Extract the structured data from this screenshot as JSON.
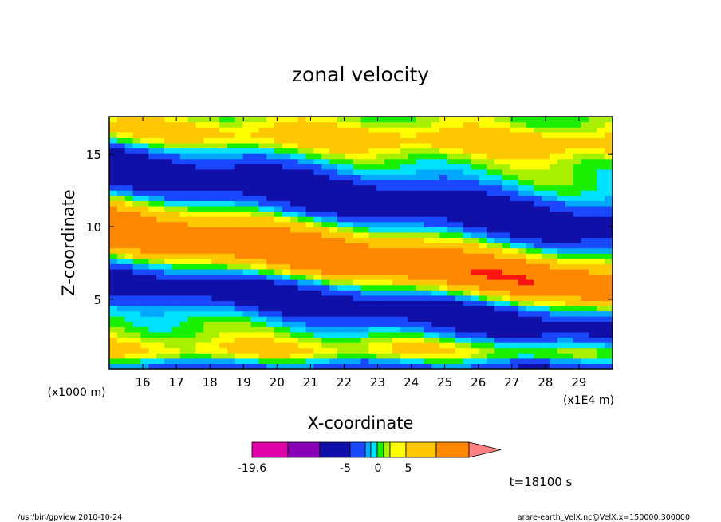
{
  "chart_data": {
    "type": "heatmap",
    "title": "zonal velocity",
    "xlabel": "X-coordinate",
    "ylabel": "Z-coordinate",
    "x_unit": "(x1E4 m)",
    "y_unit": "(x1000 m)",
    "xlim": [
      15.0,
      30.0
    ],
    "ylim": [
      0.2,
      17.6
    ],
    "x_ticks": [
      16,
      17,
      18,
      19,
      20,
      21,
      22,
      23,
      24,
      25,
      26,
      27,
      28,
      29
    ],
    "y_ticks": [
      5,
      10,
      15
    ],
    "x_tick_labels": [
      "16",
      "17",
      "18",
      "19",
      "20",
      "21",
      "22",
      "23",
      "24",
      "25",
      "26",
      "27",
      "28",
      "29"
    ],
    "y_tick_labels": [
      "5",
      "10",
      "15"
    ],
    "colorbar": {
      "levels": [
        -19.6,
        -15,
        -10,
        -5,
        -3,
        -2,
        -1,
        0,
        1,
        2,
        5,
        10,
        15
      ],
      "colors": [
        "#e000a8",
        "#8a00b8",
        "#1010a8",
        "#1a48ff",
        "#00a8ff",
        "#00e0ff",
        "#18f000",
        "#a8f000",
        "#ffff00",
        "#ffc800",
        "#ff8800",
        "#ff1414",
        "#ff8080"
      ],
      "tick_labels": [
        "-19.6",
        "-5",
        "0",
        "5"
      ]
    },
    "annotation": "t=18100 s"
  },
  "footer": {
    "left": "/usr/bin/gpview   2010-10-24",
    "right": "arare-earth_VelX.nc@VelX,x=150000:300000"
  }
}
